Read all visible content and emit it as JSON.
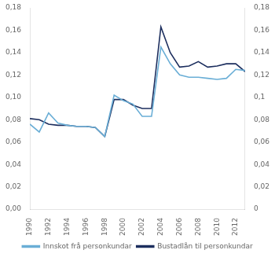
{
  "chart_data": {
    "type": "line",
    "x": [
      1990,
      1991,
      1992,
      1993,
      1994,
      1995,
      1996,
      1997,
      1998,
      1999,
      2000,
      2001,
      2002,
      2003,
      2004,
      2005,
      2006,
      2007,
      2008,
      2009,
      2010,
      2011,
      2012,
      2013
    ],
    "series": [
      {
        "name": "Innskot frå personkundar",
        "color": "#6aaed6",
        "values": [
          0.076,
          0.069,
          0.086,
          0.077,
          0.075,
          0.074,
          0.074,
          0.073,
          0.065,
          0.102,
          0.097,
          0.094,
          0.083,
          0.083,
          0.145,
          0.13,
          0.12,
          0.118,
          0.118,
          0.117,
          0.116,
          0.117,
          0.125,
          0.124
        ]
      },
      {
        "name": "Bustadlån til personkundar",
        "color": "#1c2e5e",
        "values": [
          0.081,
          0.08,
          0.076,
          0.075,
          0.075,
          0.074,
          0.074,
          0.073,
          0.065,
          0.098,
          0.098,
          0.093,
          0.09,
          0.09,
          0.163,
          0.14,
          0.127,
          0.128,
          0.132,
          0.127,
          0.128,
          0.13,
          0.13,
          0.123
        ]
      }
    ],
    "xlim": [
      1990,
      2013
    ],
    "xticks": [
      1990,
      1992,
      1994,
      1996,
      1998,
      2000,
      2002,
      2004,
      2006,
      2008,
      2010,
      2012
    ],
    "ylim": [
      0,
      0.18
    ],
    "yticks": [
      {
        "value": 0.0,
        "label": "0,00"
      },
      {
        "value": 0.02,
        "label": "0,02"
      },
      {
        "value": 0.04,
        "label": "0,04"
      },
      {
        "value": 0.06,
        "label": "0,06"
      },
      {
        "value": 0.08,
        "label": "0,08"
      },
      {
        "value": 0.1,
        "label": "0,10"
      },
      {
        "value": 0.12,
        "label": "0,12"
      },
      {
        "value": 0.14,
        "label": "0,14"
      },
      {
        "value": 0.16,
        "label": "0,16"
      },
      {
        "value": 0.18,
        "label": "0,18"
      }
    ],
    "y2lim": [
      0,
      0.18
    ],
    "y2ticks": [
      0,
      {
        "value": 0.02,
        "label": "0,02"
      },
      {
        "value": 0.04,
        "label": "0,04"
      },
      {
        "value": 0.06,
        "label": "0,06"
      },
      {
        "value": 0.08,
        "label": "0,08"
      },
      {
        "value": 0.1,
        "label": "0,1"
      },
      {
        "value": 0.12,
        "label": "0,12"
      },
      {
        "value": 0.14,
        "label": "0,14"
      },
      {
        "value": 0.16,
        "label": "0,16"
      },
      {
        "value": 0.18,
        "label": "0,18"
      }
    ],
    "grid": false,
    "legend": "bottom"
  }
}
